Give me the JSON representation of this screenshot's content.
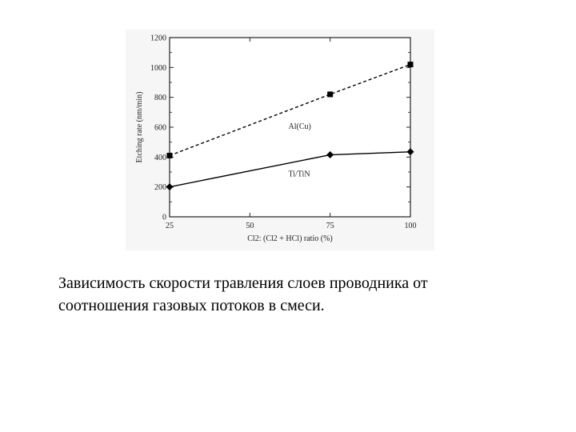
{
  "chart_data": {
    "type": "line",
    "xlabel": "Cl2: (Cl2 + HCl) ratio (%)",
    "ylabel": "Etching rate (nm/min)",
    "x": [
      25,
      50,
      75,
      100
    ],
    "xticks": [
      "25",
      "50",
      "75",
      "100"
    ],
    "yticks": [
      "0",
      "200",
      "400",
      "600",
      "800",
      "1000",
      "1200"
    ],
    "xlim": [
      25,
      100
    ],
    "ylim": [
      0,
      1200
    ],
    "grid": false,
    "series": [
      {
        "name": "Al(Cu)",
        "x": [
          25,
          75,
          100
        ],
        "values": [
          410,
          820,
          1020
        ],
        "line_style": "dashed",
        "marker": "square"
      },
      {
        "name": "Ti/TiN",
        "x": [
          25,
          75,
          100
        ],
        "values": [
          200,
          415,
          435
        ],
        "line_style": "solid",
        "marker": "diamond"
      }
    ]
  },
  "caption": {
    "line1": "Зависимость скорости травления слоев проводника от",
    "line2": "соотношения газовых потоков в смеси."
  }
}
